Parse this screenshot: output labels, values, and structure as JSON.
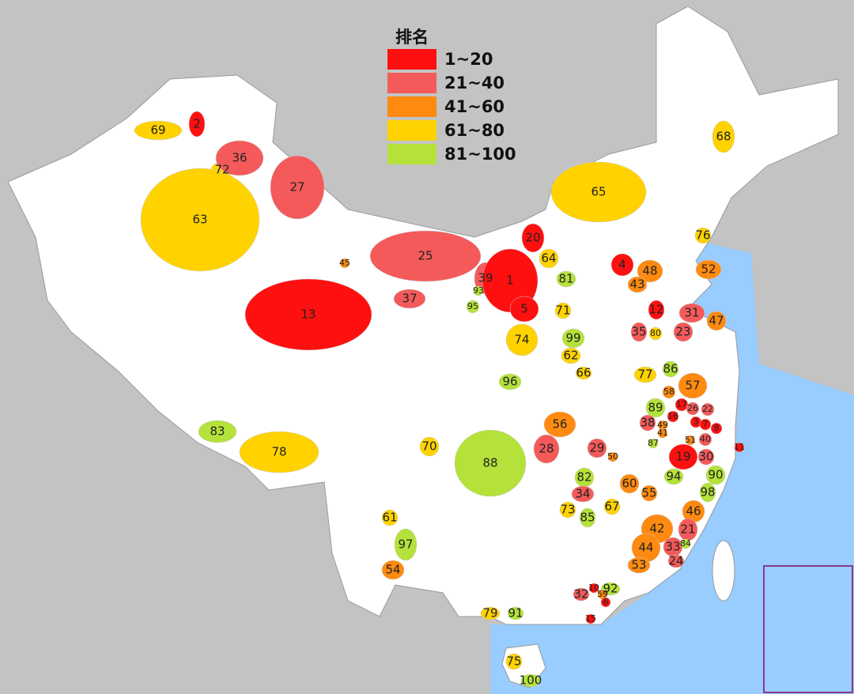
{
  "legend": {
    "title": "排名",
    "items": [
      {
        "label": "1~20",
        "color": "#ff1010"
      },
      {
        "label": "21~40",
        "color": "#f45a5a"
      },
      {
        "label": "41~60",
        "color": "#ff8a10"
      },
      {
        "label": "61~80",
        "color": "#ffd200"
      },
      {
        "label": "81~100",
        "color": "#b4e23a"
      }
    ]
  },
  "labels": [
    {
      "text": 69,
      "color": "#ffd200"
    },
    {
      "text": 2,
      "color": "#ff1010"
    },
    {
      "text": 72,
      "color": "#ffd200"
    },
    {
      "text": 36,
      "color": "#f45a5a"
    },
    {
      "text": 27,
      "color": "#f45a5a"
    },
    {
      "text": 63,
      "color": "#ffd200"
    },
    {
      "text": 65,
      "color": "#ffd200"
    },
    {
      "text": 68,
      "color": "#ffd200"
    },
    {
      "text": 76,
      "color": "#ffd200"
    },
    {
      "text": 20,
      "color": "#ff1010"
    },
    {
      "text": 64,
      "color": "#ffd200"
    },
    {
      "text": 45,
      "color": "#ff8a10"
    },
    {
      "text": 25,
      "color": "#f45a5a"
    },
    {
      "text": 39,
      "color": "#f45a5a"
    },
    {
      "text": 1,
      "color": "#ff1010"
    },
    {
      "text": 93,
      "color": "#b4e23a"
    },
    {
      "text": 95,
      "color": "#b4e23a"
    },
    {
      "text": 5,
      "color": "#ff1010"
    },
    {
      "text": 37,
      "color": "#f45a5a"
    },
    {
      "text": 81,
      "color": "#b4e23a"
    },
    {
      "text": 4,
      "color": "#ff1010"
    },
    {
      "text": 48,
      "color": "#ff8a10"
    },
    {
      "text": 43,
      "color": "#ff8a10"
    },
    {
      "text": 52,
      "color": "#ff8a10"
    },
    {
      "text": 13,
      "color": "#ff1010"
    },
    {
      "text": 71,
      "color": "#ffd200"
    },
    {
      "text": 74,
      "color": "#ffd200"
    },
    {
      "text": 12,
      "color": "#ff1010"
    },
    {
      "text": 31,
      "color": "#f45a5a"
    },
    {
      "text": 47,
      "color": "#ff8a10"
    },
    {
      "text": 35,
      "color": "#f45a5a"
    },
    {
      "text": 80,
      "color": "#ffd200"
    },
    {
      "text": 23,
      "color": "#f45a5a"
    },
    {
      "text": 99,
      "color": "#b4e23a"
    },
    {
      "text": 62,
      "color": "#ffd200"
    },
    {
      "text": 66,
      "color": "#ffd200"
    },
    {
      "text": 77,
      "color": "#ffd200"
    },
    {
      "text": 86,
      "color": "#b4e23a"
    },
    {
      "text": 96,
      "color": "#b4e23a"
    },
    {
      "text": 57,
      "color": "#ff8a10"
    },
    {
      "text": 58,
      "color": "#ff8a10"
    },
    {
      "text": 89,
      "color": "#b4e23a"
    },
    {
      "text": 17,
      "color": "#ff1010"
    },
    {
      "text": 26,
      "color": "#f45a5a"
    },
    {
      "text": 22,
      "color": "#f45a5a"
    },
    {
      "text": 83,
      "color": "#b4e23a"
    },
    {
      "text": 56,
      "color": "#ff8a10"
    },
    {
      "text": 38,
      "color": "#f45a5a"
    },
    {
      "text": 16,
      "color": "#ff1010"
    },
    {
      "text": 3,
      "color": "#ff1010"
    },
    {
      "text": 7,
      "color": "#ff1010"
    },
    {
      "text": 8,
      "color": "#ff1010"
    },
    {
      "text": 49,
      "color": "#ff8a10"
    },
    {
      "text": 41,
      "color": "#ff8a10"
    },
    {
      "text": 87,
      "color": "#b4e23a"
    },
    {
      "text": 51,
      "color": "#ff8a10"
    },
    {
      "text": 40,
      "color": "#f45a5a"
    },
    {
      "text": 70,
      "color": "#ffd200"
    },
    {
      "text": 28,
      "color": "#f45a5a"
    },
    {
      "text": 29,
      "color": "#f45a5a"
    },
    {
      "text": 50,
      "color": "#ff8a10"
    },
    {
      "text": 78,
      "color": "#ffd200"
    },
    {
      "text": 19,
      "color": "#ff1010"
    },
    {
      "text": 30,
      "color": "#f45a5a"
    },
    {
      "text": 11,
      "color": "#ff1010"
    },
    {
      "text": 88,
      "color": "#b4e23a"
    },
    {
      "text": 94,
      "color": "#b4e23a"
    },
    {
      "text": 90,
      "color": "#b4e23a"
    },
    {
      "text": 82,
      "color": "#b4e23a"
    },
    {
      "text": 60,
      "color": "#ff8a10"
    },
    {
      "text": 55,
      "color": "#ff8a10"
    },
    {
      "text": 98,
      "color": "#b4e23a"
    },
    {
      "text": 34,
      "color": "#f45a5a"
    },
    {
      "text": 73,
      "color": "#ffd200"
    },
    {
      "text": 67,
      "color": "#ffd200"
    },
    {
      "text": 46,
      "color": "#ff8a10"
    },
    {
      "text": 85,
      "color": "#b4e23a"
    },
    {
      "text": 61,
      "color": "#ffd200"
    },
    {
      "text": 42,
      "color": "#ff8a10"
    },
    {
      "text": 21,
      "color": "#f45a5a"
    },
    {
      "text": 97,
      "color": "#b4e23a"
    },
    {
      "text": 44,
      "color": "#ff8a10"
    },
    {
      "text": 33,
      "color": "#f45a5a"
    },
    {
      "text": 84,
      "color": "#b4e23a"
    },
    {
      "text": 24,
      "color": "#f45a5a"
    },
    {
      "text": 53,
      "color": "#ff8a10"
    },
    {
      "text": 54,
      "color": "#ff8a10"
    },
    {
      "text": 32,
      "color": "#f45a5a"
    },
    {
      "text": 10,
      "color": "#ff1010"
    },
    {
      "text": 92,
      "color": "#b4e23a"
    },
    {
      "text": 59,
      "color": "#ff8a10"
    },
    {
      "text": 6,
      "color": "#ff1010"
    },
    {
      "text": 15,
      "color": "#ff1010"
    },
    {
      "text": 79,
      "color": "#ffd200"
    },
    {
      "text": 91,
      "color": "#b4e23a"
    },
    {
      "text": 75,
      "color": "#ffd200"
    },
    {
      "text": 100,
      "color": "#b4e23a"
    }
  ]
}
